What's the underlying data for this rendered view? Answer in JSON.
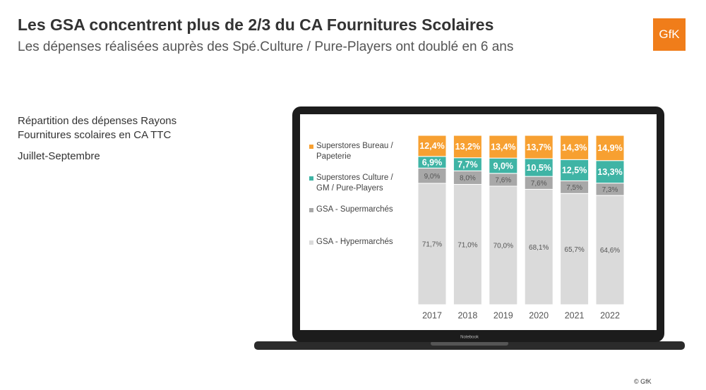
{
  "title": "Les GSA concentrent plus de 2/3 du CA Fournitures Scolaires",
  "subtitle": "Les dépenses réalisées auprès des Spé.Culture / Pure-Players ont doublé en 6 ans",
  "logo": "GfK",
  "description": "Répartition des dépenses Rayons Fournitures scolaires en CA TTC",
  "period": "Juillet-Septembre",
  "laptop_label": "Notebook",
  "copyright": "© GfK",
  "chart_data": {
    "type": "stacked_bar",
    "categories": [
      "2017",
      "2018",
      "2019",
      "2020",
      "2021",
      "2022"
    ],
    "series": [
      {
        "name": "Superstores Bureau / Papeterie",
        "color": "#f7a031",
        "values": [
          12.4,
          13.2,
          13.4,
          13.7,
          14.3,
          14.9
        ],
        "value_labels": [
          "12,4%",
          "13,2%",
          "13,4%",
          "13,7%",
          "14,3%",
          "14,9%"
        ]
      },
      {
        "name": "Superstores Culture / GM / Pure-Players",
        "color": "#3fb4a5",
        "values": [
          6.9,
          7.7,
          9.0,
          10.5,
          12.5,
          13.3
        ],
        "value_labels": [
          "6,9%",
          "7,7%",
          "9,0%",
          "10,5%",
          "12,5%",
          "13,3%"
        ]
      },
      {
        "name": "GSA - Supermarchés",
        "color": "#a8a8a8",
        "values": [
          9.0,
          8.0,
          7.6,
          7.6,
          7.5,
          7.3
        ],
        "value_labels": [
          "9,0%",
          "8,0%",
          "7,6%",
          "7,6%",
          "7,5%",
          "7,3%"
        ]
      },
      {
        "name": "GSA - Hypermarchés",
        "color": "#dadada",
        "values": [
          71.7,
          71.0,
          70.0,
          68.1,
          65.7,
          64.6
        ],
        "value_labels": [
          "71,7%",
          "71,0%",
          "70,0%",
          "68,1%",
          "65,7%",
          "64,6%"
        ]
      }
    ]
  }
}
